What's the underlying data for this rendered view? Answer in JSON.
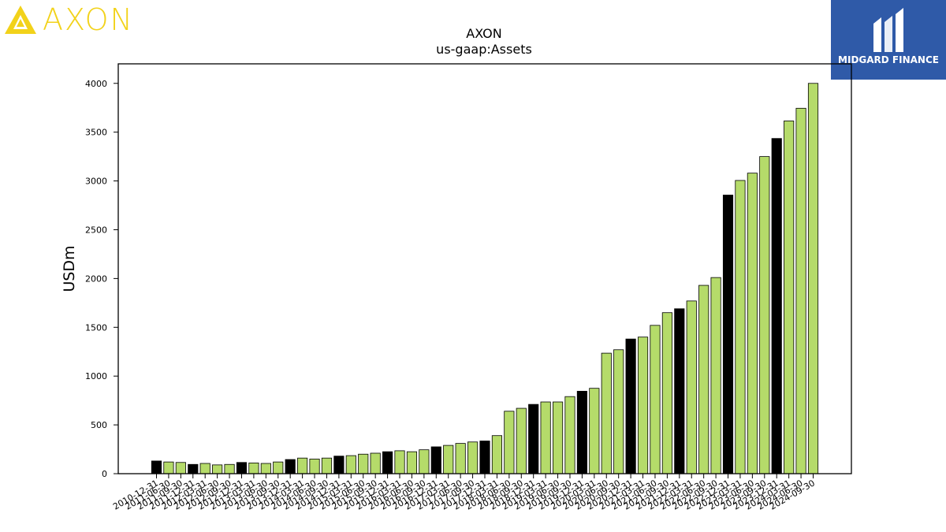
{
  "brand": {
    "name": "AXON",
    "color": "#f2d21a"
  },
  "badge": {
    "name": "MIDGARD FINANCE",
    "color": "#2f5aa8"
  },
  "chart_data": {
    "type": "bar",
    "title": "AXON",
    "subtitle": "us-gaap:Assets",
    "ylabel": "USDm",
    "xlabel": "",
    "ylim": [
      0,
      4200
    ],
    "yticks": [
      0,
      500,
      1000,
      1500,
      2000,
      2500,
      3000,
      3500,
      4000
    ],
    "colors": {
      "annual": "#000000",
      "quarterly": "#b5db6a"
    },
    "categories": [
      "2010-12-31",
      "2011-06-30",
      "2011-09-30",
      "2011-12-31",
      "2012-03-31",
      "2012-06-30",
      "2012-09-30",
      "2012-12-31",
      "2013-03-31",
      "2013-06-30",
      "2013-09-30",
      "2013-12-31",
      "2014-03-31",
      "2014-06-30",
      "2014-09-30",
      "2014-12-31",
      "2015-03-31",
      "2015-06-30",
      "2015-09-30",
      "2015-12-31",
      "2016-03-31",
      "2016-06-30",
      "2016-09-30",
      "2016-12-31",
      "2017-03-31",
      "2017-06-30",
      "2017-09-30",
      "2017-12-31",
      "2018-03-31",
      "2018-06-30",
      "2018-09-30",
      "2018-12-31",
      "2019-03-31",
      "2019-06-30",
      "2019-09-30",
      "2019-12-31",
      "2020-03-31",
      "2020-06-30",
      "2020-09-30",
      "2020-12-31",
      "2021-03-31",
      "2021-06-30",
      "2021-09-30",
      "2021-12-31",
      "2022-03-31",
      "2022-06-30",
      "2022-09-30",
      "2022-12-31",
      "2023-03-31",
      "2023-06-30",
      "2023-09-30",
      "2023-12-31",
      "2024-03-31",
      "2024-06-30",
      "2024-09-30"
    ],
    "values": [
      130,
      120,
      115,
      95,
      105,
      90,
      95,
      115,
      110,
      105,
      120,
      145,
      160,
      150,
      160,
      180,
      185,
      200,
      210,
      225,
      235,
      225,
      245,
      275,
      290,
      310,
      325,
      335,
      390,
      640,
      670,
      710,
      735,
      735,
      790,
      845,
      875,
      1235,
      1270,
      1380,
      1400,
      1520,
      1650,
      1690,
      1770,
      1930,
      2010,
      2855,
      3005,
      3080,
      3250,
      3435,
      3615,
      3745,
      4000
    ],
    "annual_flags": [
      true,
      false,
      false,
      true,
      false,
      false,
      false,
      true,
      false,
      false,
      false,
      true,
      false,
      false,
      false,
      true,
      false,
      false,
      false,
      true,
      false,
      false,
      false,
      true,
      false,
      false,
      false,
      true,
      false,
      false,
      false,
      true,
      false,
      false,
      false,
      true,
      false,
      false,
      false,
      true,
      false,
      false,
      false,
      true,
      false,
      false,
      false,
      true,
      false,
      false,
      false,
      true,
      false,
      false,
      false
    ]
  }
}
